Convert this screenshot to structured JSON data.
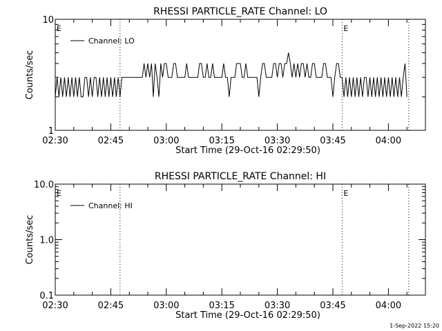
{
  "footer": {
    "timestamp": "1-Sep-2022 15:20"
  },
  "chart_data": [
    {
      "type": "line",
      "title": "RHESSI PARTICLE_RATE Channel: LO",
      "xlabel": "Start Time (29-Oct-16 02:29:50)",
      "ylabel": "Counts/sec",
      "yscale": "log",
      "ylim": [
        1,
        10
      ],
      "ytick_labels": [
        "1",
        "10"
      ],
      "xtick_labels": [
        "02:30",
        "02:45",
        "03:00",
        "03:15",
        "03:30",
        "03:45",
        "04:00"
      ],
      "xlim_minutes": [
        0,
        100
      ],
      "legend": {
        "label": "Channel: LO",
        "position": "top-left"
      },
      "event_markers": [
        {
          "label": "E",
          "minute": 0
        },
        {
          "label": "",
          "minute": 17.5
        },
        {
          "label": "E",
          "minute": 77.5
        },
        {
          "label": "",
          "minute": 95.5
        }
      ],
      "series": [
        {
          "name": "Channel: LO",
          "step_minutes": 0.5,
          "values": [
            2,
            3,
            2,
            3,
            2,
            3,
            2,
            3,
            2,
            3,
            2,
            3,
            2,
            3,
            2,
            2,
            3,
            3,
            2,
            3,
            2,
            3,
            3,
            2,
            3,
            2,
            3,
            2,
            3,
            2,
            3,
            2,
            3,
            2,
            3,
            2,
            3,
            3,
            3,
            3,
            3,
            3,
            3,
            3,
            3,
            3,
            3,
            3,
            4,
            3,
            4,
            3,
            4,
            2,
            4,
            3,
            2,
            4,
            3,
            4,
            4,
            3,
            3,
            3,
            4,
            4,
            3,
            3,
            3,
            3,
            3,
            4,
            3,
            3,
            3,
            3,
            3,
            3,
            4,
            4,
            3,
            3,
            4,
            3,
            3,
            4,
            3,
            3,
            3,
            3,
            3,
            4,
            3,
            3,
            2,
            3,
            3,
            3,
            4,
            4,
            4,
            3,
            3,
            4,
            3,
            3,
            3,
            3,
            3,
            3,
            2,
            3,
            4,
            4,
            3,
            3,
            3,
            3,
            4,
            4,
            3,
            4,
            4,
            3,
            4,
            4,
            5,
            4,
            3,
            4,
            3,
            4,
            3,
            4,
            4,
            3,
            4,
            3,
            3,
            4,
            4,
            3,
            3,
            3,
            3,
            4,
            4,
            3,
            3,
            3,
            2,
            3,
            4,
            4,
            3,
            3,
            2,
            3,
            2,
            3,
            2,
            3,
            2,
            3,
            2,
            3,
            2,
            3,
            3,
            2,
            3,
            2,
            3,
            2,
            3,
            2,
            3,
            2,
            3,
            2,
            3,
            2,
            3,
            2,
            3,
            2,
            3,
            2,
            3,
            4,
            2
          ]
        }
      ]
    },
    {
      "type": "line",
      "title": "RHESSI PARTICLE_RATE Channel: HI",
      "xlabel": "Start Time (29-Oct-16 02:29:50)",
      "ylabel": "Counts/sec",
      "yscale": "log",
      "ylim": [
        0.1,
        10
      ],
      "ytick_labels": [
        "0.1",
        "1.0",
        "10.0"
      ],
      "xtick_labels": [
        "02:30",
        "02:45",
        "03:00",
        "03:15",
        "03:30",
        "03:45",
        "04:00"
      ],
      "xlim_minutes": [
        0,
        100
      ],
      "legend": {
        "label": "Channel: HI",
        "position": "top-left"
      },
      "event_markers": [
        {
          "label": "E",
          "minute": 0
        },
        {
          "label": "",
          "minute": 17.5
        },
        {
          "label": "E",
          "minute": 77.5
        },
        {
          "label": "",
          "minute": 95.5
        }
      ],
      "series": [
        {
          "name": "Channel: HI",
          "step_minutes": 0.5,
          "values": []
        }
      ]
    }
  ]
}
